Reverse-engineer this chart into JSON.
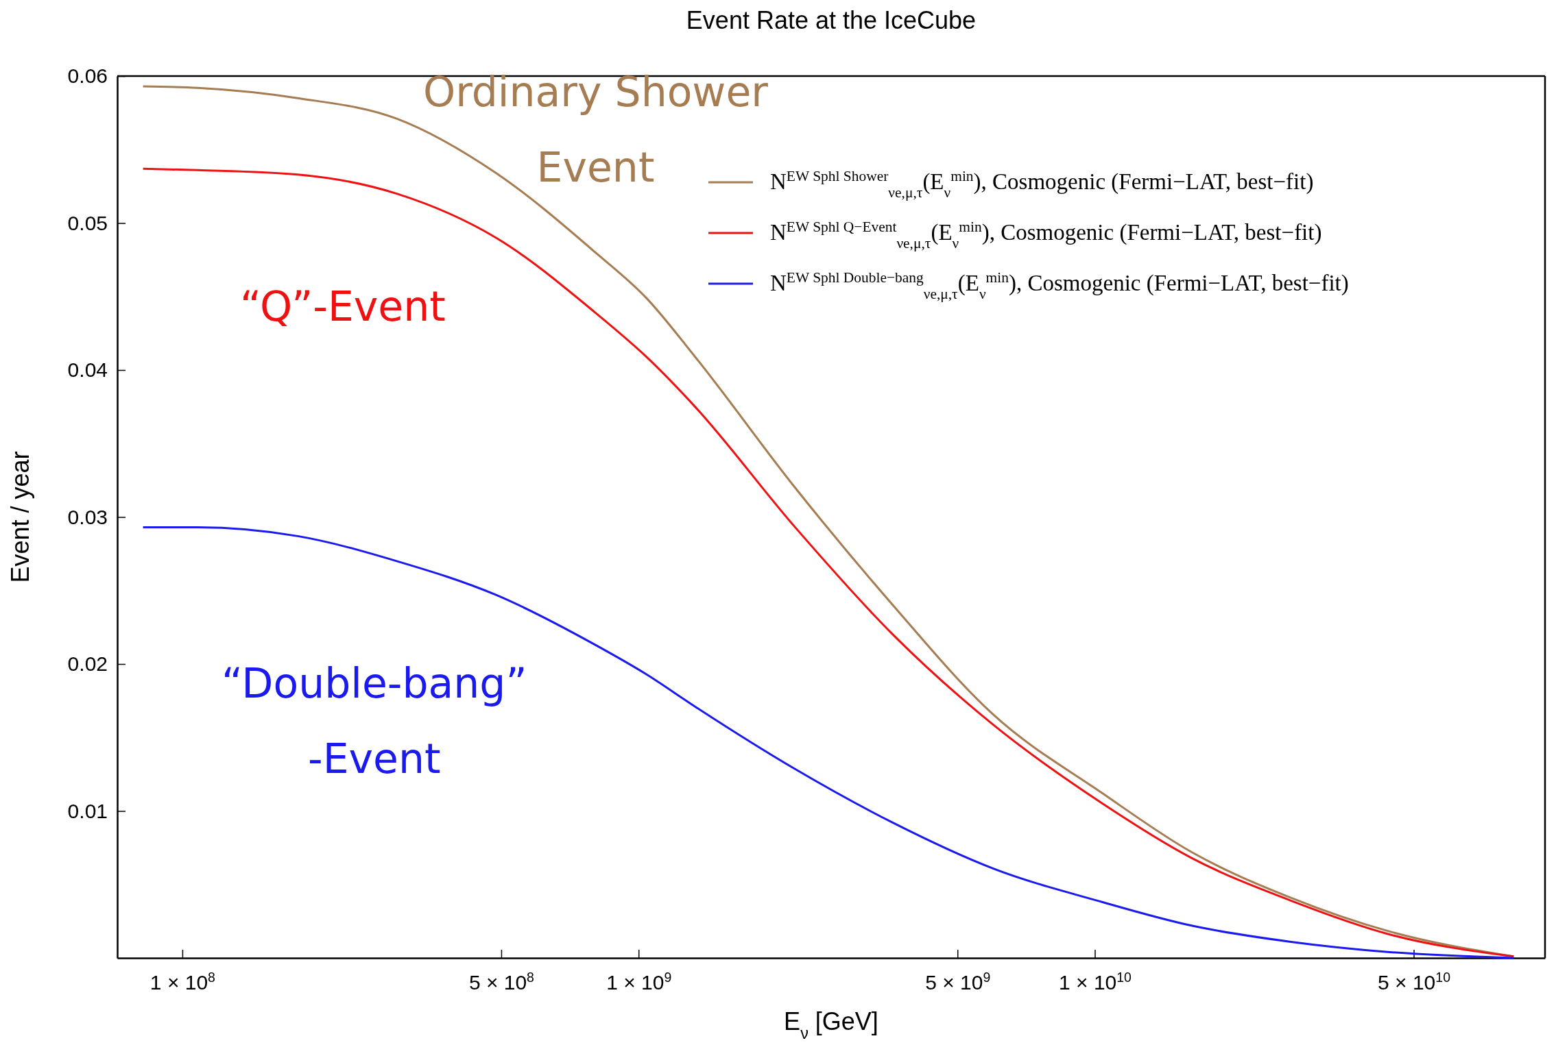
{
  "chart_data": {
    "type": "line",
    "title": "Event Rate at the IceCube",
    "xlabel": "E$_{ν}$ [GeV]",
    "ylabel": "Event / year",
    "log": "x",
    "x": [
      82000000.0,
      108000000.0,
      179000000.0,
      295000000.0,
      487000000.0,
      804000000.0,
      1040000000.0,
      1330000000.0,
      2190000000.0,
      3610000000.0,
      5970000000.0,
      10400000000.0,
      16300000000.0,
      26900000000.0,
      44300000000.0,
      82800000000.0
    ],
    "series": [
      {
        "name": "N$^{EW Sphl Shower}$$_{νe,μ,τ}$(E$_{ν}$$^{min}$),  Cosmogenic (Fermi−LAT, best−fit)",
        "color": "#a67c52",
        "values": [
          0.0593,
          0.0592,
          0.0585,
          0.0571,
          0.0534,
          0.048,
          0.0449,
          0.0409,
          0.0321,
          0.024,
          0.0166,
          0.0112,
          0.0072,
          0.0041,
          0.0018,
          0.0001
        ]
      },
      {
        "name": "N$^{EW Sphl Q−Event}$$_{νe,μ,τ}$(E$_{ν}$$^{min}$),  Cosmogenic (Fermi−LAT, best−fit)",
        "color": "#ee1111",
        "values": [
          0.0537,
          0.0536,
          0.0533,
          0.052,
          0.049,
          0.0439,
          0.0409,
          0.0375,
          0.0294,
          0.022,
          0.0159,
          0.0105,
          0.0068,
          0.0039,
          0.0016,
          0.0001
        ]
      },
      {
        "name": "N$^{EW Sphl Double−bang}$$_{νe,μ,τ}$(E$_{ν}$$^{min}$),  Cosmogenic (Fermi−LAT, best−fit)",
        "color": "#1a1aee",
        "values": [
          0.0293,
          0.0293,
          0.0287,
          0.027,
          0.0247,
          0.0213,
          0.0193,
          0.0171,
          0.0129,
          0.0092,
          0.0061,
          0.0038,
          0.0022,
          0.0011,
          0.0004,
          0.0
        ]
      }
    ],
    "xlim": [
      72000000.0,
      97000000000.0
    ],
    "xticks": [
      {
        "value": 100000000.0,
        "label": "1 × 10$^{8}$"
      },
      {
        "value": 500000000.0,
        "label": "5 × 10$^{8}$"
      },
      {
        "value": 1000000000.0,
        "label": "1 × 10$^{9}$"
      },
      {
        "value": 5000000000.0,
        "label": "5 × 10$^{9}$"
      },
      {
        "value": 10000000000.0,
        "label": "1 × 10$^{10}$"
      },
      {
        "value": 50000000000.0,
        "label": "5 × 10$^{10}$"
      }
    ],
    "ylim": [
      0,
      0.06
    ],
    "yticks": [
      0.01,
      0.02,
      0.03,
      0.04,
      0.05,
      0.06
    ],
    "legend": "top right",
    "grid": false,
    "line_style": "solid",
    "marker": "none",
    "annotations": [
      "Ordinary Shower\nEvent",
      "“Q”-Event",
      "“Double-bang”\n-Event"
    ]
  }
}
